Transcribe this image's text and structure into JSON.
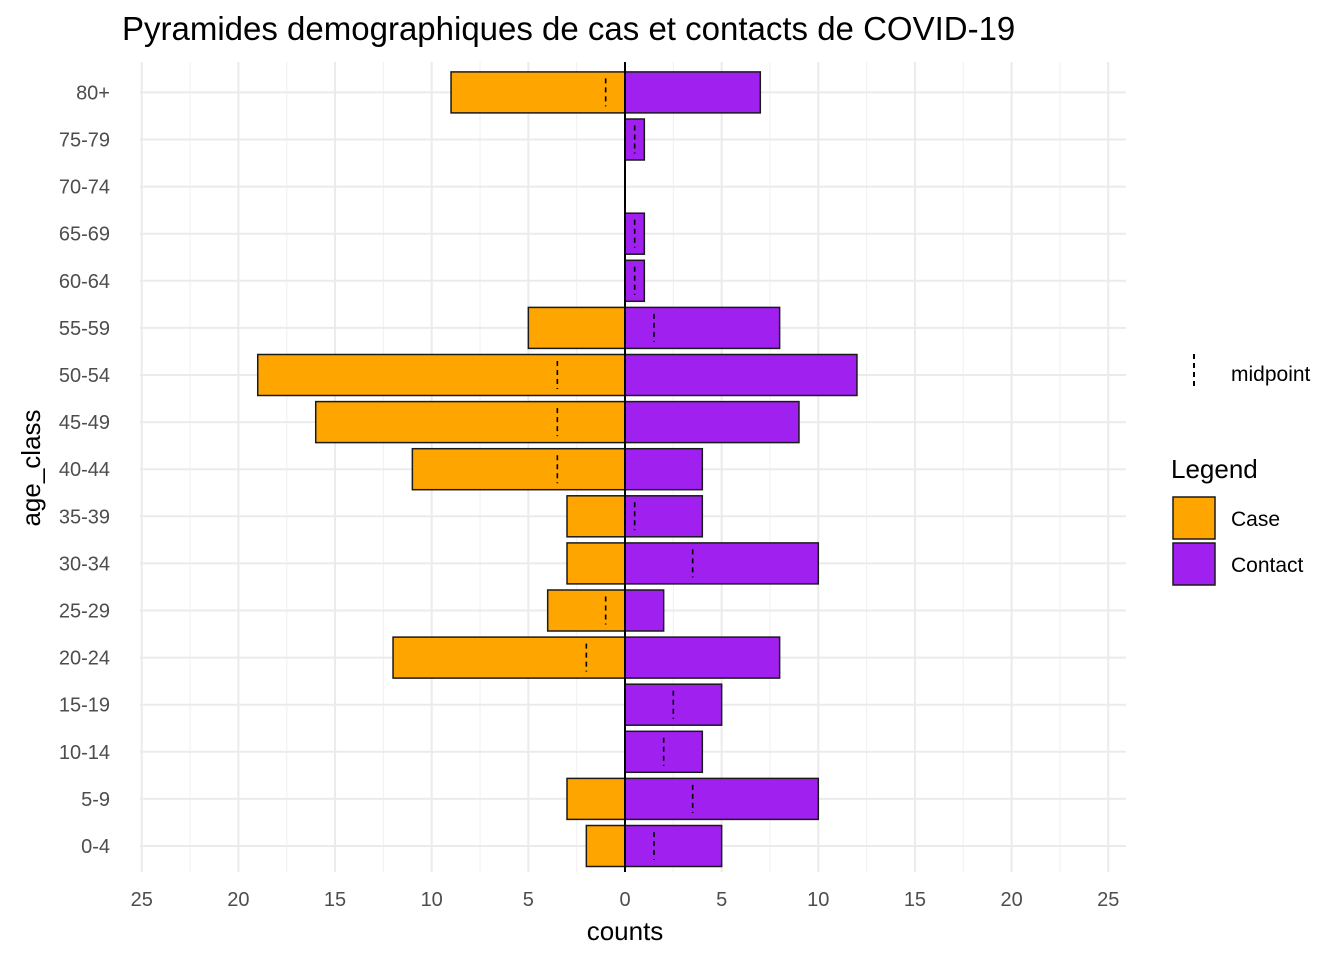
{
  "chart_data": {
    "type": "bar",
    "orientation": "horizontal",
    "title": "Pyramides demographiques de cas et contacts de COVID-19",
    "xlabel": "counts",
    "ylabel": "age_class",
    "xlim": [
      -25,
      25
    ],
    "x_ticks": [
      -25,
      -20,
      -15,
      -10,
      -5,
      0,
      5,
      10,
      15,
      20,
      25
    ],
    "x_tick_labels": [
      "25",
      "20",
      "15",
      "10",
      "5",
      "0",
      "5",
      "10",
      "15",
      "20",
      "25"
    ],
    "categories": [
      "0-4",
      "5-9",
      "10-14",
      "15-19",
      "20-24",
      "25-29",
      "30-34",
      "35-39",
      "40-44",
      "45-49",
      "50-54",
      "55-59",
      "60-64",
      "65-69",
      "70-74",
      "75-79",
      "80+"
    ],
    "series": [
      {
        "name": "Case",
        "color": "#FFA500",
        "direction": "left",
        "values": [
          2,
          3,
          0,
          0,
          12,
          4,
          3,
          3,
          11,
          16,
          19,
          5,
          0,
          0,
          0,
          0,
          9
        ],
        "midpoints": [
          null,
          null,
          null,
          null,
          2,
          1,
          null,
          null,
          3.5,
          3.5,
          3.5,
          null,
          null,
          null,
          null,
          null,
          1
        ]
      },
      {
        "name": "Contact",
        "color": "#A020F0",
        "direction": "right",
        "values": [
          5,
          10,
          4,
          5,
          8,
          2,
          10,
          4,
          4,
          9,
          12,
          8,
          1,
          1,
          0,
          1,
          7
        ],
        "midpoints": [
          1.5,
          3.5,
          2,
          2.5,
          null,
          null,
          3.5,
          0.5,
          null,
          null,
          null,
          1.5,
          0.5,
          0.5,
          null,
          0.5,
          null
        ]
      }
    ],
    "grid": true,
    "legend": {
      "title": "Legend",
      "placement": "right",
      "linetype_label": "midpoint"
    }
  }
}
